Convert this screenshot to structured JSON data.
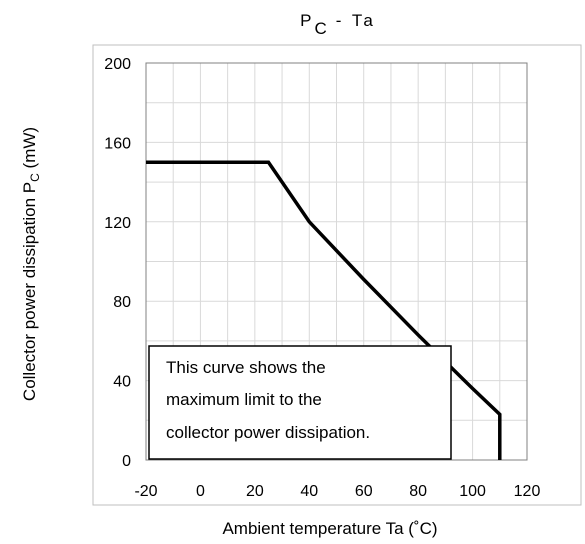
{
  "chart_data": {
    "type": "line",
    "title": {
      "main": "P",
      "subscript": "C",
      "rest": "- Ta"
    },
    "xlabel": "Ambient temperature    Ta    (˚C)",
    "ylabel": {
      "main": "Collector power dissipation    P",
      "subscript": "C",
      "rest": "    (mW)"
    },
    "xlim": [
      -20,
      120
    ],
    "ylim": [
      0,
      200
    ],
    "xticks": [
      -20,
      0,
      20,
      40,
      60,
      80,
      100,
      120
    ],
    "yticks": [
      0,
      40,
      80,
      120,
      160,
      200
    ],
    "minor_grid_step": {
      "x": 10,
      "y": 20
    },
    "grid": true,
    "series": [
      {
        "x": [
          -20,
          25,
          40,
          60,
          80,
          100,
          110,
          110
        ],
        "y": [
          150,
          150,
          120,
          91,
          63,
          36,
          23,
          0
        ]
      }
    ],
    "annotation": [
      "This curve shows the",
      "maximum limit to the",
      "collector power dissipation."
    ],
    "colors": {
      "line": "#000000",
      "grid": "#d9d9d9",
      "frame": "#808080"
    }
  }
}
